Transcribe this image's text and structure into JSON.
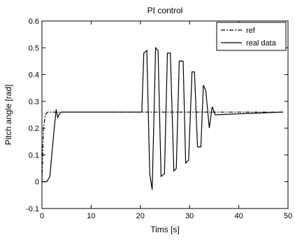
{
  "chart_data": {
    "type": "line",
    "title": "PI control",
    "xlabel": "Tims [s]",
    "ylabel": "Pitch angle [rad]",
    "xlim": [
      0,
      50
    ],
    "ylim": [
      -0.1,
      0.6
    ],
    "xticks": [
      0,
      10,
      20,
      30,
      40,
      50
    ],
    "yticks": [
      -0.1,
      0,
      0.1,
      0.2,
      0.3,
      0.4,
      0.5,
      0.6
    ],
    "grid": false,
    "legend_position": "top-right",
    "series": [
      {
        "name": "ref",
        "style": "dash-dot",
        "color": "#000000",
        "x": [
          0,
          0.3,
          0.7,
          1.2,
          49
        ],
        "y": [
          0.0,
          0.2,
          0.25,
          0.26,
          0.26
        ]
      },
      {
        "name": "real data",
        "style": "solid",
        "color": "#000000",
        "x": [
          0,
          1.0,
          1.6,
          2.0,
          2.5,
          2.9,
          3.2,
          3.6,
          4.0,
          20.3,
          20.7,
          21.3,
          21.9,
          22.4,
          23.1,
          23.6,
          24.2,
          24.9,
          25.5,
          26.1,
          26.8,
          27.3,
          27.9,
          28.7,
          29.2,
          29.8,
          30.5,
          31.0,
          31.6,
          32.3,
          32.8,
          33.3,
          34.0,
          34.6,
          35.2,
          49
        ],
        "y": [
          0.0,
          0.0,
          0.02,
          0.1,
          0.2,
          0.27,
          0.24,
          0.255,
          0.26,
          0.26,
          0.48,
          0.49,
          0.03,
          -0.03,
          0.5,
          0.49,
          0.02,
          0.03,
          0.48,
          0.48,
          0.04,
          0.05,
          0.45,
          0.45,
          0.07,
          0.08,
          0.41,
          0.41,
          0.13,
          0.13,
          0.36,
          0.34,
          0.2,
          0.28,
          0.25,
          0.26
        ]
      }
    ]
  }
}
